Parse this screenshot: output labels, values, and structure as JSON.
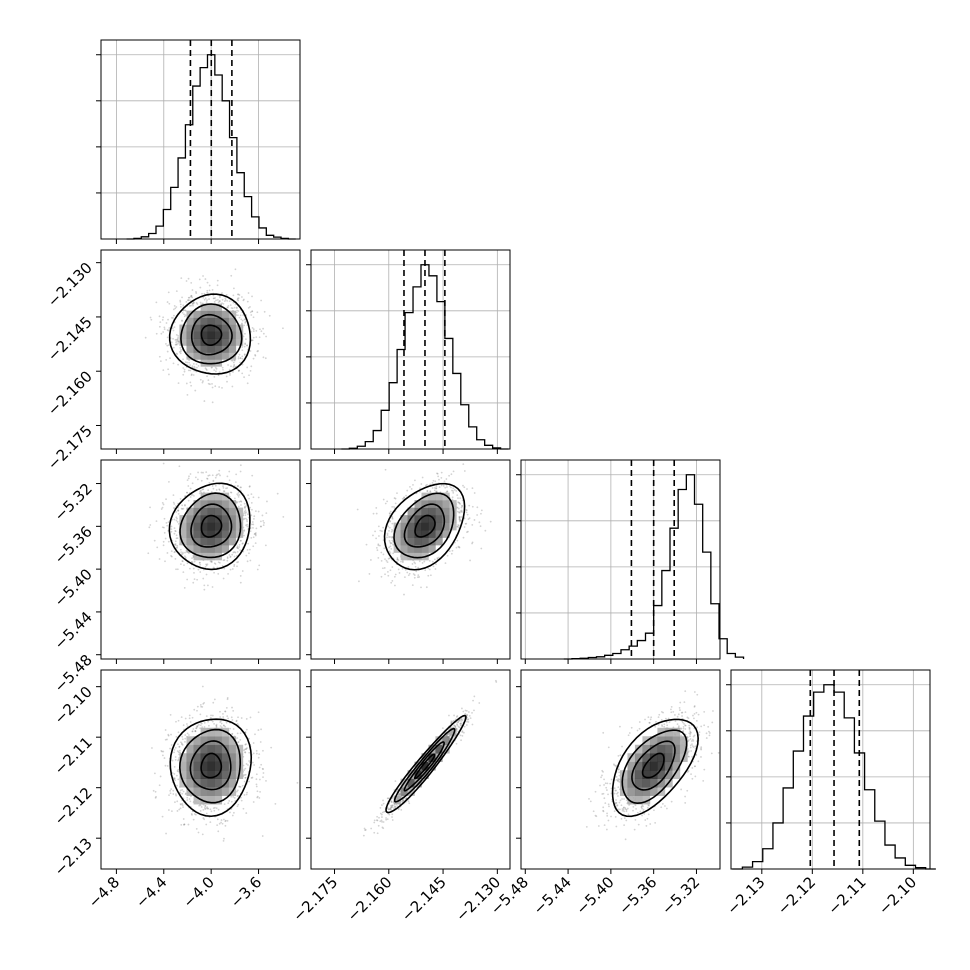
{
  "chart_data": {
    "type": "corner",
    "parameters": [
      {
        "ticks": [
          -4.8,
          -4.4,
          -4.0,
          -3.6
        ],
        "labels": [
          "−4.8",
          "−4.4",
          "−4.0",
          "−3.6"
        ]
      },
      {
        "ticks": [
          -2.175,
          -2.16,
          -2.145,
          -2.13
        ],
        "labels": [
          "−2.175",
          "−2.160",
          "−2.145",
          "−2.130"
        ]
      },
      {
        "ticks": [
          -5.48,
          -5.44,
          -5.4,
          -5.36,
          -5.32
        ],
        "labels": [
          "−5.48",
          "−5.44",
          "−5.40",
          "−5.36",
          "−5.32"
        ]
      },
      {
        "ticks": [
          -2.13,
          -2.12,
          -2.11,
          -2.1
        ],
        "labels": [
          "−2.13",
          "−2.12",
          "−2.11",
          "−2.10"
        ]
      }
    ],
    "ranges": [
      [
        -4.93,
        -3.25
      ],
      [
        -2.1815,
        -2.1265
      ],
      [
        -5.484,
        -5.298
      ],
      [
        -2.1361,
        -2.0967
      ]
    ],
    "hist_range": [
      -5.484,
      -5.296
    ],
    "quantiles": [
      [
        -4.175,
        -3.999,
        -3.825
      ],
      [
        -2.1558,
        -2.15,
        -2.1445
      ],
      [
        -5.3808,
        -5.36,
        -5.3408
      ],
      [
        -2.1204,
        -2.1157,
        -2.1107
      ]
    ],
    "means": [
      -4.0,
      -2.15,
      -5.36,
      -2.1157
    ],
    "stds": [
      0.17,
      0.0055,
      0.02,
      0.0048
    ],
    "histograms": [
      [
        0.0,
        0.003,
        0.012,
        0.03,
        0.07,
        0.16,
        0.28,
        0.44,
        0.62,
        0.83,
        0.93,
        1.0,
        0.89,
        0.75,
        0.55,
        0.36,
        0.23,
        0.12,
        0.06,
        0.02,
        0.01,
        0.003,
        0.0
      ],
      [
        0.0,
        0.004,
        0.015,
        0.04,
        0.1,
        0.21,
        0.36,
        0.54,
        0.74,
        0.88,
        1.0,
        0.94,
        0.8,
        0.6,
        0.41,
        0.24,
        0.12,
        0.05,
        0.02,
        0.006,
        0.0
      ],
      [
        0.0,
        0.002,
        0.004,
        0.008,
        0.012,
        0.02,
        0.03,
        0.05,
        0.07,
        0.1,
        0.14,
        0.29,
        0.48,
        0.71,
        0.92,
        1.0,
        0.84,
        0.58,
        0.3,
        0.11,
        0.03,
        0.01
      ],
      [
        0.0,
        0.01,
        0.04,
        0.11,
        0.25,
        0.44,
        0.64,
        0.83,
        0.96,
        1.0,
        0.96,
        0.82,
        0.63,
        0.43,
        0.26,
        0.13,
        0.06,
        0.02,
        0.007,
        0.0
      ]
    ],
    "hist_ymax": 1.08,
    "hist_grid": [
      0.25,
      0.5,
      0.75,
      1.0
    ],
    "correlations": {
      "1_0": 0.0,
      "2_0": 0.1,
      "2_1": 0.35,
      "3_0": 0.05,
      "3_1": 0.96,
      "3_2": 0.55
    },
    "contour_levels": [
      0.5,
      1.0,
      1.5,
      2.0
    ],
    "contour_color": "#000000",
    "density_color": "#000000",
    "scatter_color": "#808080",
    "grid": true
  }
}
